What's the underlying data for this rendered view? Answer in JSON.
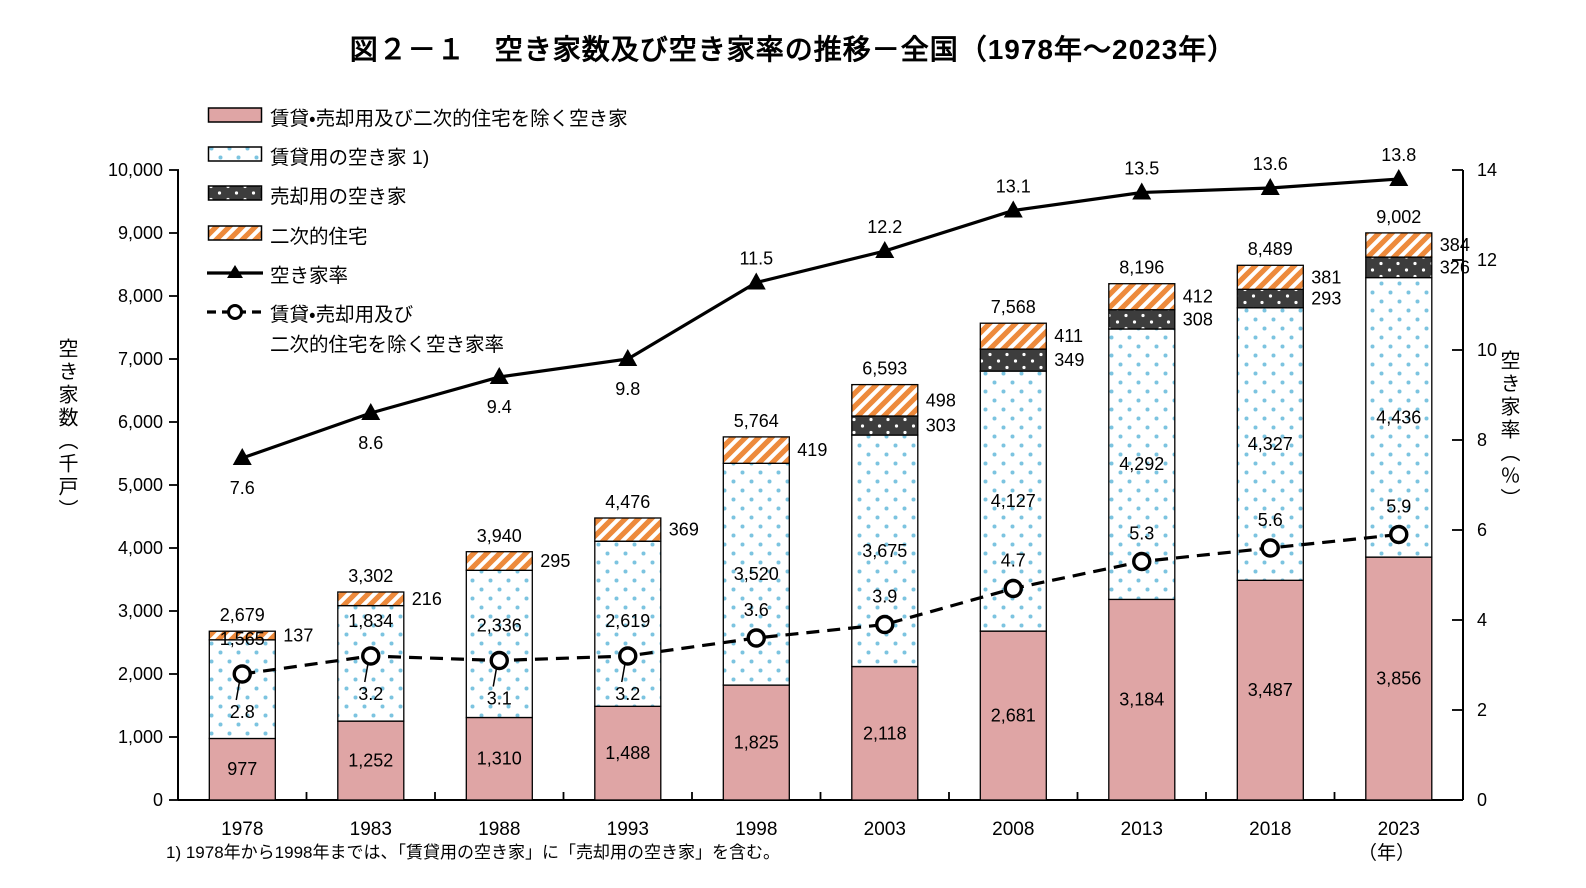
{
  "title": "図２－１　空き家数及び空き家率の推移－全国（1978年～2023年）",
  "footnote": "1)  1978年から1998年までは、「賃貸用の空き家」に「売却用の空き家」を含む。",
  "x_axis_unit": "（年）",
  "left_axis": {
    "title": "空き家数（千戸）",
    "min": 0,
    "max": 10000,
    "step": 1000
  },
  "right_axis": {
    "title": "空き家率（％）",
    "min": 0,
    "max": 14,
    "step": 2
  },
  "colors": {
    "vacant_excl_fill": "#dfa5a5",
    "rental_dot": "#7cc4e0",
    "sale_bg": "#3d3d3d",
    "sale_dot": "#ffffff",
    "secondary_stripe": "#ed8a3c",
    "line": "#000000",
    "axis": "#000000"
  },
  "chart_data": {
    "type": "stacked-bar + line combo",
    "categories": [
      "1978",
      "1983",
      "1988",
      "1993",
      "1998",
      "2003",
      "2008",
      "2013",
      "2018",
      "2023"
    ],
    "series": [
      {
        "name": "賃貸・売却用及び二次的住宅を除く空き家",
        "type": "bar",
        "style": "pink",
        "values": [
          977,
          1252,
          1310,
          1488,
          1825,
          2118,
          2681,
          3184,
          3487,
          3856
        ]
      },
      {
        "name": "賃貸用の空き家 1)",
        "type": "bar",
        "style": "blue-dots",
        "values": [
          1565,
          1834,
          2336,
          2619,
          3520,
          3675,
          4127,
          4292,
          4327,
          4436
        ]
      },
      {
        "name": "売却用の空き家",
        "type": "bar",
        "style": "dark-dots",
        "values": [
          null,
          null,
          null,
          null,
          null,
          303,
          349,
          308,
          293,
          326
        ]
      },
      {
        "name": "二次的住宅",
        "type": "bar",
        "style": "orange-hatch",
        "values": [
          137,
          216,
          295,
          369,
          419,
          498,
          411,
          412,
          381,
          384
        ]
      },
      {
        "name": "空き家率",
        "type": "line",
        "style": "solid-triangle",
        "axis": "right",
        "values": [
          7.6,
          8.6,
          9.4,
          9.8,
          11.5,
          12.2,
          13.1,
          13.5,
          13.6,
          13.8
        ]
      },
      {
        "name": "賃貸・売却用及び\n二次的住宅を除く空き家率",
        "type": "line",
        "style": "dashed-circle",
        "axis": "right",
        "values": [
          2.8,
          3.2,
          3.1,
          3.2,
          3.6,
          3.9,
          4.7,
          5.3,
          5.6,
          5.9
        ]
      }
    ],
    "totals": [
      2679,
      3302,
      3940,
      4476,
      5764,
      6593,
      7568,
      8196,
      8489,
      9002
    ],
    "left_axis_range": [
      0,
      10000
    ],
    "right_axis_range": [
      0,
      14
    ],
    "grid": "off",
    "legend_position": "top-left-inside"
  }
}
